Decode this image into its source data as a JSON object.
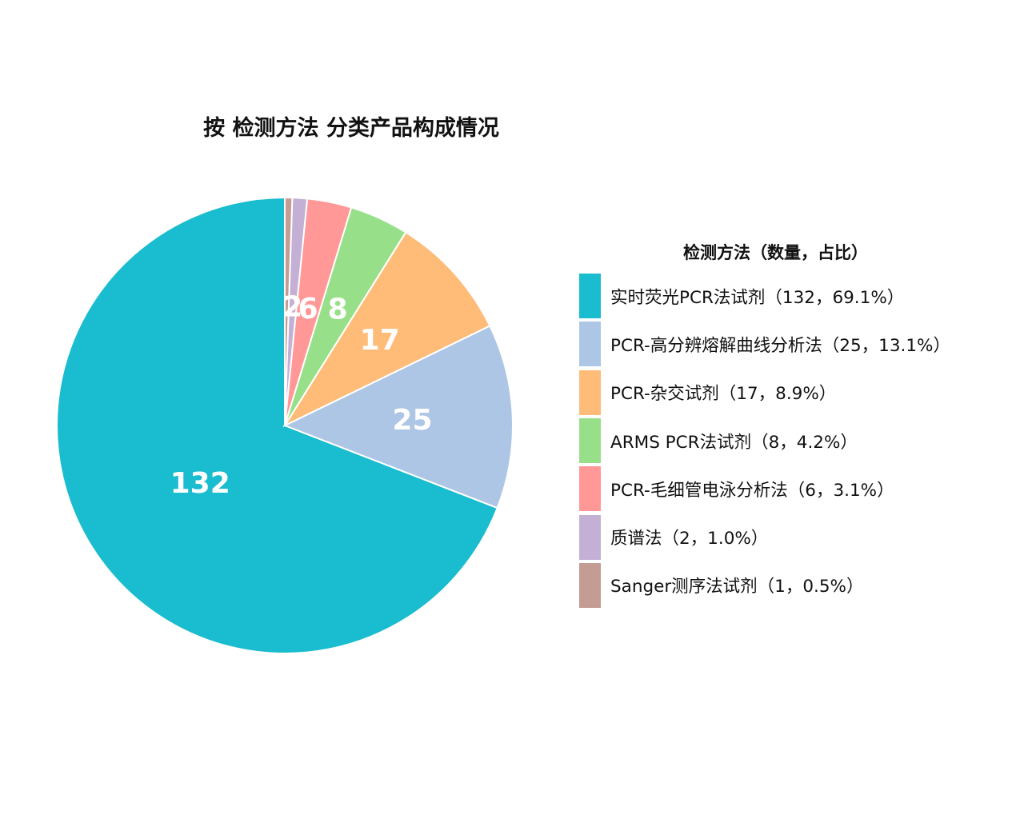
{
  "chart_data": {
    "type": "pie",
    "title": "按 检测方法 分类产品构成情况",
    "legend": {
      "title": "检测方法（数量，占比）",
      "position": "right"
    },
    "slices": [
      {
        "label": "实时荧光PCR法试剂（132，69.1%）",
        "value": 132,
        "percent": 69.1,
        "data_label": "132",
        "color": "#1abccf"
      },
      {
        "label": "PCR-高分辨熔解曲线分析法（25，13.1%）",
        "value": 25,
        "percent": 13.1,
        "data_label": "25",
        "color": "#aec6e6"
      },
      {
        "label": "PCR-杂交试剂（17，8.9%）",
        "value": 17,
        "percent": 8.9,
        "data_label": "17",
        "color": "#ffbb78"
      },
      {
        "label": "ARMS PCR法试剂（8，4.2%）",
        "value": 8,
        "percent": 4.2,
        "data_label": "8",
        "color": "#98df8a"
      },
      {
        "label": "PCR-毛细管电泳分析法（6，3.1%）",
        "value": 6,
        "percent": 3.1,
        "data_label": "6",
        "color": "#ff9896"
      },
      {
        "label": "质谱法（2，1.0%）",
        "value": 2,
        "percent": 1.0,
        "data_label": "2",
        "color": "#c5b0d5"
      },
      {
        "label": "Sanger测序法试剂（1，0.5%）",
        "value": 1,
        "percent": 0.5,
        "data_label": "",
        "color": "#c49c94"
      }
    ]
  }
}
